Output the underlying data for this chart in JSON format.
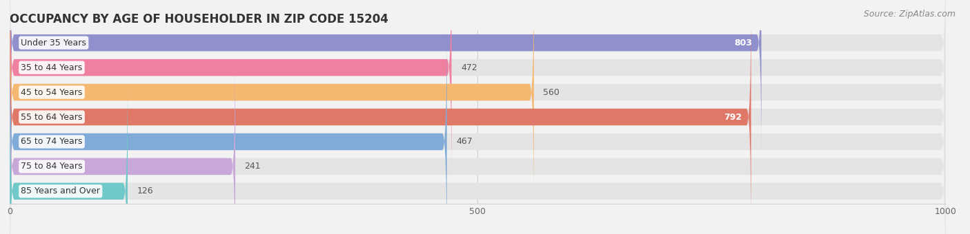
{
  "title": "OCCUPANCY BY AGE OF HOUSEHOLDER IN ZIP CODE 15204",
  "source": "Source: ZipAtlas.com",
  "categories": [
    "Under 35 Years",
    "35 to 44 Years",
    "45 to 54 Years",
    "55 to 64 Years",
    "65 to 74 Years",
    "75 to 84 Years",
    "85 Years and Over"
  ],
  "values": [
    803,
    472,
    560,
    792,
    467,
    241,
    126
  ],
  "bar_colors": [
    "#9090cc",
    "#f080a0",
    "#f5b870",
    "#e07868",
    "#80aad8",
    "#c8a8d8",
    "#70c8c8"
  ],
  "xlim_max": 1000,
  "xticks": [
    0,
    500,
    1000
  ],
  "background_color": "#f2f2f2",
  "bar_bg_color": "#e4e4e4",
  "title_fontsize": 12,
  "label_fontsize": 9,
  "value_fontsize": 9,
  "source_fontsize": 9,
  "value_inside_threshold": 700
}
